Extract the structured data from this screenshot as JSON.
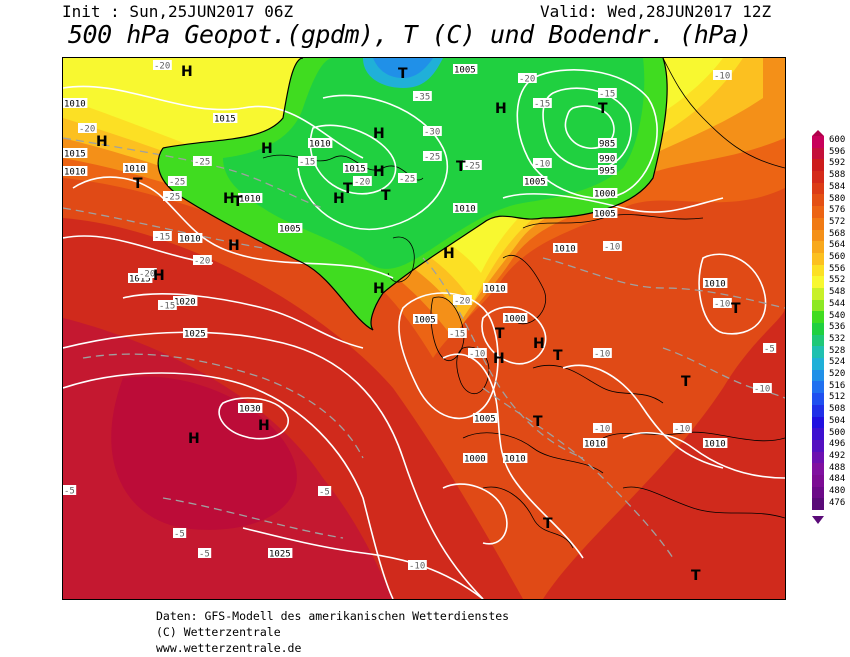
{
  "header": {
    "init": "Init : Sun,25JUN2017 06Z",
    "valid": "Valid: Wed,28JUN2017 12Z",
    "title": "500 hPa Geopot.(gpdm), T (C) und Bodendr. (hPa)"
  },
  "legend": {
    "labels": [
      "600",
      "596",
      "592",
      "588",
      "584",
      "580",
      "576",
      "572",
      "568",
      "564",
      "560",
      "556",
      "552",
      "548",
      "544",
      "540",
      "536",
      "532",
      "528",
      "524",
      "520",
      "516",
      "512",
      "508",
      "504",
      "500",
      "496",
      "492",
      "488",
      "484",
      "480",
      "476"
    ],
    "colors": [
      "#c8005a",
      "#c4103a",
      "#cc1c1c",
      "#d42a1a",
      "#dc3c16",
      "#e45014",
      "#ec6414",
      "#f07a14",
      "#f49018",
      "#f8a81c",
      "#fcc020",
      "#fce024",
      "#f8f830",
      "#c8f028",
      "#8ce824",
      "#40dc20",
      "#20d040",
      "#20c878",
      "#20c0b0",
      "#20b0d8",
      "#2090e8",
      "#2070f0",
      "#2050f0",
      "#2030e8",
      "#2010e0",
      "#3c10d0",
      "#5410c0",
      "#6c10b0",
      "#8010a0",
      "#7c0c94",
      "#6c0a88",
      "#5a0a78"
    ]
  },
  "map": {
    "pressure_labels": [
      "1010",
      "1015",
      "1010",
      "1015",
      "1005",
      "985",
      "990",
      "995",
      "1000",
      "1010",
      "1010",
      "1010",
      "1015",
      "1010",
      "1005",
      "1005",
      "1010",
      "1015",
      "1020",
      "1025",
      "1010",
      "1000",
      "1000",
      "1005",
      "1005",
      "1010",
      "1030",
      "1025",
      "1010",
      "1010",
      "1010",
      "1005",
      "1010"
    ],
    "temp_labels": [
      "-20",
      "-20",
      "-25",
      "-25",
      "-25",
      "-35",
      "-30",
      "-25",
      "-25",
      "-25",
      "-20",
      "-15",
      "-15",
      "-20",
      "-20",
      "-15",
      "-20",
      "-20",
      "-15",
      "-15",
      "-10",
      "-10",
      "-10",
      "-15",
      "-10",
      "-10",
      "-10",
      "-5",
      "-10",
      "-10",
      "-10",
      "-5",
      "-5",
      "-5",
      "-5",
      "-10"
    ],
    "pressure_centers_H": 16,
    "pressure_centers_T": 14
  },
  "footer": {
    "line1": "Daten: GFS-Modell des amerikanischen Wetterdienstes",
    "line2": "(C) Wetterzentrale",
    "line3": "www.wetterzentrale.de"
  }
}
